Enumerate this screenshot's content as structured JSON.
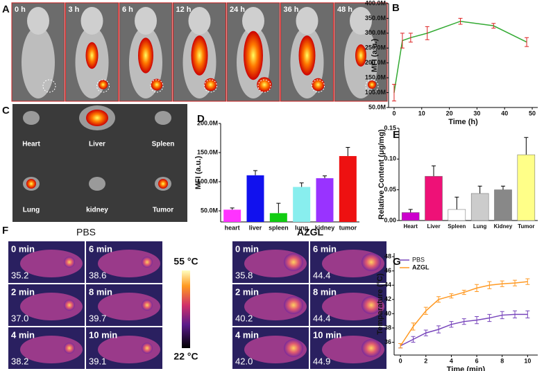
{
  "chart_data": [
    {
      "type": "line",
      "panel": "B",
      "y_label": "MFI (a.u.)",
      "x_label": "Time (h)",
      "x": [
        0,
        3,
        6,
        12,
        24,
        36,
        48
      ],
      "xlim": [
        -2,
        52
      ],
      "xticks": [
        0,
        10,
        20,
        30,
        40,
        50
      ],
      "ylim": [
        50000000,
        400000000
      ],
      "yticks": [
        {
          "value": 50000000,
          "label": "50.0M"
        },
        {
          "value": 100000000,
          "label": "100.0M"
        },
        {
          "value": 150000000,
          "label": "150.0M"
        },
        {
          "value": 200000000,
          "label": "200.0M"
        },
        {
          "value": 250000000,
          "label": "250.0M"
        },
        {
          "value": 300000000,
          "label": "300.0M"
        },
        {
          "value": 350000000,
          "label": "350.0M"
        },
        {
          "value": 400000000,
          "label": "400.0M"
        }
      ],
      "series": [
        {
          "color": "#33aa33",
          "error_color": "#dd2222",
          "values": [
            100000000,
            275000000,
            285000000,
            300000000,
            340000000,
            325000000,
            270000000
          ],
          "errors": [
            28000000,
            25000000,
            15000000,
            22000000,
            10000000,
            8000000,
            15000000
          ]
        }
      ]
    },
    {
      "type": "bar",
      "panel": "D",
      "y_label": "MFI (a.u.)",
      "categories": [
        "heart",
        "liver",
        "spleen",
        "lung",
        "kidney",
        "tumor"
      ],
      "values": [
        52000000,
        111000000,
        46000000,
        91000000,
        106000000,
        144000000
      ],
      "errors": [
        3000000,
        8000000,
        17000000,
        7000000,
        4000000,
        15000000
      ],
      "colors": [
        "#ff33ff",
        "#1111ee",
        "#11cc11",
        "#88eeee",
        "#9933ff",
        "#ee1111"
      ],
      "ylim": [
        31000000,
        200000000
      ],
      "yticks": [
        {
          "value": 50000000,
          "label": "50.0M"
        },
        {
          "value": 100000000,
          "label": "100.0M"
        },
        {
          "value": 150000000,
          "label": "150.0M"
        },
        {
          "value": 200000000,
          "label": "200.0M"
        }
      ]
    },
    {
      "type": "bar",
      "panel": "E",
      "y_label": "Relative Content (μg/mg)",
      "categories": [
        "Heart",
        "Liver",
        "Spleen",
        "Lung",
        "Kidney",
        "Tumor"
      ],
      "values": [
        0.013,
        0.072,
        0.018,
        0.044,
        0.05,
        0.107
      ],
      "errors": [
        0.005,
        0.017,
        0.02,
        0.012,
        0.006,
        0.028
      ],
      "colors": [
        "#cc00cc",
        "#ee1177",
        "#ffffff",
        "#cccccc",
        "#888888",
        "#ffff88"
      ],
      "ylim": [
        0,
        0.15
      ],
      "yticks": [
        {
          "value": 0,
          "label": "0.00"
        },
        0.05,
        {
          "value": 0.1,
          "label": "0.10"
        },
        0.15
      ]
    },
    {
      "type": "line",
      "panel": "G",
      "y_label": "Temparature (°C)",
      "x_label": "Time (min)",
      "x": [
        0,
        1,
        2,
        3,
        4,
        5,
        6,
        7,
        8,
        9,
        10
      ],
      "xlim": [
        -0.5,
        10.8
      ],
      "xticks": [
        0,
        2,
        4,
        6,
        8,
        10
      ],
      "ylim": [
        34.2,
        48.5
      ],
      "yticks": [
        36,
        38,
        40,
        42,
        44,
        46,
        48
      ],
      "series": [
        {
          "name": "PBS",
          "color": "#7744bb",
          "values": [
            35.5,
            36.4,
            37.3,
            37.8,
            38.5,
            38.9,
            39.1,
            39.4,
            39.8,
            39.9,
            39.9
          ],
          "errors": [
            0.3,
            0.4,
            0.4,
            0.5,
            0.4,
            0.4,
            0.5,
            0.5,
            0.5,
            0.5,
            0.5
          ]
        },
        {
          "name": "AZGL",
          "color": "#ff9922",
          "values": [
            35.5,
            38.2,
            40.4,
            42.0,
            42.5,
            43.0,
            43.6,
            44.0,
            44.2,
            44.3,
            44.5
          ],
          "errors": [
            0.3,
            0.5,
            0.5,
            0.4,
            0.3,
            0.3,
            0.5,
            0.5,
            0.4,
            0.4,
            0.4
          ]
        }
      ]
    }
  ],
  "panel_a": {
    "panel": "A",
    "times": [
      "0 h",
      "3 h",
      "6 h",
      "12 h",
      "24 h",
      "36 h",
      "48 h"
    ]
  },
  "panel_c": {
    "panel": "C",
    "organs": [
      "Heart",
      "Liver",
      "Spleen",
      "Lung",
      "kidney",
      "Tumor"
    ]
  },
  "panel_f": {
    "panel": "F",
    "scale_max": "55 °C",
    "scale_min": "22 °C",
    "groups": [
      {
        "name": "PBS",
        "tiles": [
          {
            "time": "0 min",
            "temp": "35.2"
          },
          {
            "time": "6 min",
            "temp": "38.6"
          },
          {
            "time": "2 min",
            "temp": "37.0"
          },
          {
            "time": "8 min",
            "temp": "39.7"
          },
          {
            "time": "4 min",
            "temp": "38.2"
          },
          {
            "time": "10 min",
            "temp": "39.1"
          }
        ]
      },
      {
        "name": "AZGL",
        "tiles": [
          {
            "time": "0 min",
            "temp": "35.8"
          },
          {
            "time": "6 min",
            "temp": "44.4"
          },
          {
            "time": "2 min",
            "temp": "40.2"
          },
          {
            "time": "8 min",
            "temp": "44.4"
          },
          {
            "time": "4 min",
            "temp": "42.0"
          },
          {
            "time": "10 min",
            "temp": "44.9"
          }
        ]
      }
    ]
  }
}
